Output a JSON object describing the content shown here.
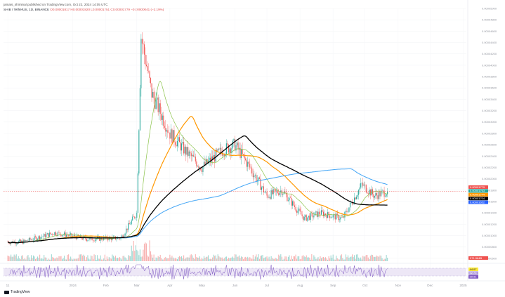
{
  "header": {
    "published_by": "jamais_shiminal published on TradingView.com, Oct 22, 2024 14:05 UTC",
    "symbol": "SHIB / TetherUS, 1D, BINANCE",
    "ohlc": "O0.00001817  H0.00001820  L0.00001751  C0.00001779  −0.00000041 (−2.19%)"
  },
  "price_axis": {
    "labels": [
      "0.00005000",
      "0.00004800",
      "0.00004600",
      "0.00004400",
      "0.00004200",
      "0.00004000",
      "0.00003800",
      "0.00003600",
      "0.00003400",
      "0.00003200",
      "0.00003000",
      "0.00002800",
      "0.00002600",
      "0.00002400",
      "0.00002200",
      "0.00002000",
      "0.00001800",
      "0.00001600",
      "0.00001400",
      "0.00001200",
      "0.00001000",
      "0.00000800",
      "0.00000600"
    ]
  },
  "price_badges": [
    {
      "text": "0.00001779",
      "color": "#ef5350"
    },
    {
      "text": "0.00001763",
      "color": "#26a69a"
    },
    {
      "text": "0.00001744",
      "color": "#ff9800"
    },
    {
      "text": "0.00001704",
      "color": "#000000"
    },
    {
      "text": "0.00001652",
      "color": "#2962ff"
    }
  ],
  "volume_badge": {
    "text": "971.564B",
    "color": "#ef5350"
  },
  "rsi_badges": [
    {
      "text": "44.07",
      "color": "#ffeb3b"
    },
    {
      "text": "52.73",
      "color": "#b39ddb"
    },
    {
      "text": "39.91",
      "color": "#7e57c2"
    }
  ],
  "time_axis": {
    "labels": [
      "11",
      "2024",
      "Feb",
      "Mar",
      "Apr",
      "May",
      "Jun",
      "Jul",
      "Aug",
      "Sep",
      "Oct",
      "Nov",
      "Dec",
      "2025"
    ]
  },
  "chart_data": {
    "type": "candlestick",
    "x_range": [
      "2023-11",
      "2025-01"
    ],
    "y_range": [
      6e-06,
      5e-05
    ],
    "approx_close_path": [
      {
        "date": "2023-11",
        "close": 8.9e-06
      },
      {
        "date": "2023-12",
        "close": 1.05e-05
      },
      {
        "date": "2024-01",
        "close": 9.4e-06
      },
      {
        "date": "2024-02",
        "close": 9.6e-06
      },
      {
        "date": "2024-03-01",
        "close": 1.4e-05
      },
      {
        "date": "2024-03-05",
        "close": 4.5e-05
      },
      {
        "date": "2024-03-15",
        "close": 3.5e-05
      },
      {
        "date": "2024-04-01",
        "close": 2.8e-05
      },
      {
        "date": "2024-04-15",
        "close": 2.5e-05
      },
      {
        "date": "2024-05-01",
        "close": 2.2e-05
      },
      {
        "date": "2024-05-20",
        "close": 2.5e-05
      },
      {
        "date": "2024-06-01",
        "close": 2.6e-05
      },
      {
        "date": "2024-06-15",
        "close": 2.2e-05
      },
      {
        "date": "2024-07-01",
        "close": 1.7e-05
      },
      {
        "date": "2024-07-15",
        "close": 1.8e-05
      },
      {
        "date": "2024-08-05",
        "close": 1.3e-05
      },
      {
        "date": "2024-08-20",
        "close": 1.4e-05
      },
      {
        "date": "2024-09-10",
        "close": 1.3e-05
      },
      {
        "date": "2024-09-28",
        "close": 1.9e-05
      },
      {
        "date": "2024-10-10",
        "close": 1.7e-05
      },
      {
        "date": "2024-10-22",
        "close": 1.779e-05
      }
    ],
    "moving_averages": [
      {
        "color": "#26a69a",
        "last": 1.763e-05
      },
      {
        "color": "#ff9800",
        "last": 1.744e-05
      },
      {
        "color": "#000000",
        "last": 1.704e-05
      },
      {
        "color": "#2962ff",
        "last": 1.652e-05
      }
    ],
    "colors": {
      "up": "#26a69a",
      "down": "#ef5350",
      "rsi": "#7e57c2",
      "rsi_band": "#ede7f6"
    }
  },
  "logo": {
    "text": "TradingView"
  }
}
